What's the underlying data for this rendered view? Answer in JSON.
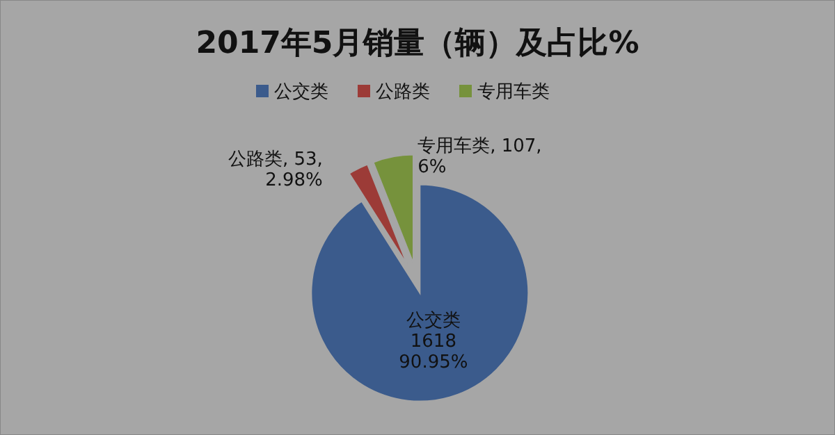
{
  "chart_data": {
    "type": "pie",
    "title": "2017年5月销量（辆）及占比%",
    "categories": [
      "公交类",
      "公路类",
      "专用车类"
    ],
    "values": [
      90.95,
      2.98,
      6
    ],
    "value_labels": [
      "公交类\n1618\n90.95%",
      "公路类, 53,\n2.98%",
      "专用车类, 107,\n6%"
    ],
    "colors": [
      "#3b5b8c",
      "#9c3b37",
      "#76923c"
    ],
    "data_labels": true,
    "legend": "top"
  }
}
